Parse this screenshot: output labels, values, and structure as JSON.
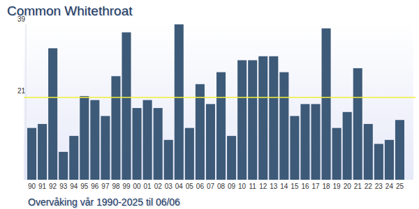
{
  "chart_data": {
    "type": "bar",
    "title": "Common Whitethroat",
    "subtitle": "Overvåking vår 1990-2025 til 06/06",
    "categories": [
      "90",
      "91",
      "92",
      "93",
      "94",
      "95",
      "96",
      "97",
      "98",
      "99",
      "00",
      "01",
      "02",
      "03",
      "04",
      "05",
      "06",
      "07",
      "08",
      "09",
      "10",
      "11",
      "12",
      "13",
      "14",
      "15",
      "16",
      "17",
      "18",
      "19",
      "20",
      "21",
      "22",
      "23",
      "24",
      "25"
    ],
    "values": [
      13,
      14,
      33,
      7,
      11,
      21,
      20,
      16,
      26,
      37,
      18,
      20,
      18,
      10,
      39,
      13,
      24,
      19,
      27,
      11,
      30,
      30,
      31,
      31,
      27,
      16,
      19,
      19,
      38,
      13,
      17,
      28,
      14,
      9,
      10,
      15
    ],
    "average": 20.7,
    "color": "#3d5a78",
    "ylim": [
      0,
      39
    ],
    "yticks": [
      21,
      39
    ],
    "grid": false
  }
}
